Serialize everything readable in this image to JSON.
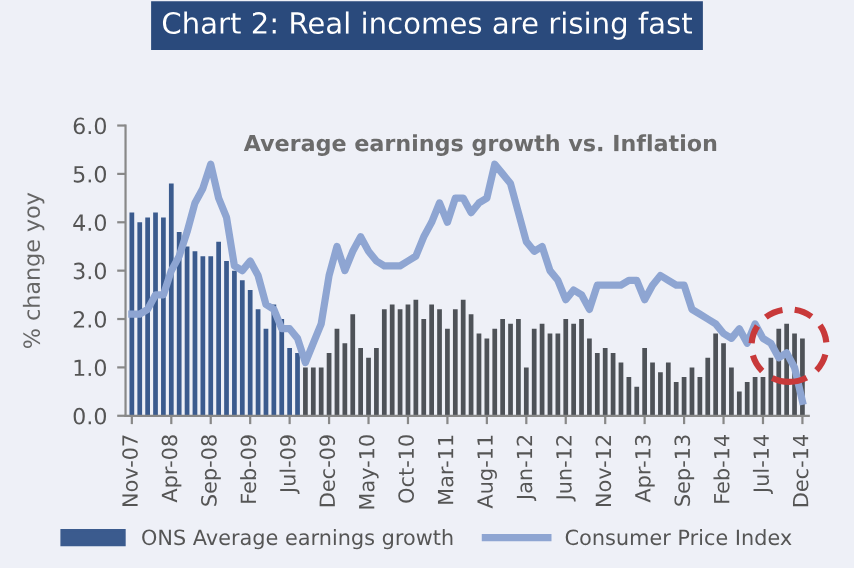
{
  "chart_data": {
    "type": "bar",
    "title": "Chart 2: Real incomes are rising fast",
    "subtitle": "Average earnings growth vs. Inflation",
    "ylabel": "% change yoy",
    "categories": [
      "Nov-07",
      null,
      null,
      null,
      null,
      "Apr-08",
      null,
      null,
      null,
      null,
      "Sep-08",
      null,
      null,
      null,
      null,
      "Feb-09",
      null,
      null,
      null,
      null,
      "Jul-09",
      null,
      null,
      null,
      null,
      "Dec-09",
      null,
      null,
      null,
      null,
      "May-10",
      null,
      null,
      null,
      null,
      "Oct-10",
      null,
      null,
      null,
      null,
      "Mar-11",
      null,
      null,
      null,
      null,
      "Aug-11",
      null,
      null,
      null,
      null,
      "Jan-12",
      null,
      null,
      null,
      null,
      "Jun-12",
      null,
      null,
      null,
      null,
      "Nov-12",
      null,
      null,
      null,
      null,
      "Apr-13",
      null,
      null,
      null,
      null,
      "Sep-13",
      null,
      null,
      null,
      null,
      "Feb-14",
      null,
      null,
      null,
      null,
      "Jul-14",
      null,
      null,
      null,
      null,
      "Dec-14"
    ],
    "series": [
      {
        "name": "ONS Average earnings growth",
        "color": "#3b5b8e",
        "colors": [
          "#3b5b8e",
          "#3b5b8e",
          "#3b5b8e",
          "#3b5b8e",
          "#3b5b8e",
          "#3b5b8e",
          "#3b5b8e",
          "#3b5b8e",
          "#3b5b8e",
          "#3b5b8e",
          "#3b5b8e",
          "#3b5b8e",
          "#3b5b8e",
          "#3b5b8e",
          "#3b5b8e",
          "#3b5b8e",
          "#3b5b8e",
          "#3b5b8e",
          "#3b5b8e",
          "#3b5b8e",
          "#3b5b8e",
          "#3b5b8e",
          "#4e5258",
          "#4e5258",
          "#4e5258",
          "#4e5258",
          "#4e5258",
          "#4e5258",
          "#4e5258",
          "#4e5258",
          "#4e5258",
          "#4e5258",
          "#4e5258",
          "#4e5258",
          "#4e5258",
          "#4e5258",
          "#4e5258",
          "#4e5258",
          "#4e5258",
          "#4e5258",
          "#4e5258",
          "#4e5258",
          "#4e5258",
          "#4e5258",
          "#4e5258",
          "#4e5258",
          "#4e5258",
          "#4e5258",
          "#4e5258",
          "#4e5258",
          "#4e5258",
          "#4e5258",
          "#4e5258",
          "#4e5258",
          "#4e5258",
          "#4e5258",
          "#4e5258",
          "#4e5258",
          "#4e5258",
          "#4e5258",
          "#4e5258",
          "#4e5258",
          "#4e5258",
          "#4e5258",
          "#4e5258",
          "#4e5258",
          "#4e5258",
          "#4e5258",
          "#4e5258",
          "#4e5258",
          "#4e5258",
          "#4e5258",
          "#4e5258",
          "#4e5258",
          "#4e5258",
          "#4e5258",
          "#4e5258",
          "#4e5258",
          "#4e5258",
          "#4e5258",
          "#4e5258",
          "#4e5258",
          "#4e5258",
          "#4e5258",
          "#4e5258",
          "#4e5258"
        ],
        "values": [
          4.2,
          4.0,
          4.1,
          4.2,
          4.1,
          4.8,
          3.8,
          3.5,
          3.4,
          3.3,
          3.3,
          3.6,
          3.2,
          3.0,
          2.8,
          2.6,
          2.2,
          1.8,
          2.3,
          2.0,
          1.4,
          1.3,
          1.0,
          1.0,
          1.0,
          1.3,
          1.8,
          1.5,
          2.1,
          1.4,
          1.2,
          1.4,
          2.2,
          2.3,
          2.2,
          2.3,
          2.4,
          2.0,
          2.3,
          2.2,
          1.8,
          2.2,
          2.4,
          2.1,
          1.7,
          1.6,
          1.8,
          2.0,
          1.9,
          2.0,
          1.0,
          1.8,
          1.9,
          1.7,
          1.7,
          2.0,
          1.9,
          2.0,
          1.6,
          1.3,
          1.4,
          1.3,
          1.1,
          0.8,
          0.6,
          1.4,
          1.1,
          0.9,
          1.1,
          0.7,
          0.8,
          1.0,
          0.8,
          1.2,
          1.7,
          1.5,
          1.0,
          0.5,
          0.7,
          0.8,
          0.8,
          1.2,
          1.8,
          1.9,
          1.7,
          1.6
        ]
      },
      {
        "name": "Consumer Price Index",
        "type": "line",
        "color": "#8ea5d2",
        "values": [
          2.1,
          2.1,
          2.2,
          2.5,
          2.5,
          3.0,
          3.3,
          3.8,
          4.4,
          4.7,
          5.2,
          4.5,
          4.1,
          3.1,
          3.0,
          3.2,
          2.9,
          2.3,
          2.2,
          1.8,
          1.8,
          1.6,
          1.1,
          1.5,
          1.9,
          2.9,
          3.5,
          3.0,
          3.4,
          3.7,
          3.4,
          3.2,
          3.1,
          3.1,
          3.1,
          3.2,
          3.3,
          3.7,
          4.0,
          4.4,
          4.0,
          4.5,
          4.5,
          4.2,
          4.4,
          4.5,
          5.2,
          5.0,
          4.8,
          4.2,
          3.6,
          3.4,
          3.5,
          3.0,
          2.8,
          2.4,
          2.6,
          2.5,
          2.2,
          2.7,
          2.7,
          2.7,
          2.7,
          2.8,
          2.8,
          2.4,
          2.7,
          2.9,
          2.8,
          2.7,
          2.7,
          2.2,
          2.1,
          2.0,
          1.9,
          1.7,
          1.6,
          1.8,
          1.5,
          1.9,
          1.6,
          1.5,
          1.2,
          1.3,
          1.0,
          0.3
        ]
      }
    ],
    "ylim": [
      0,
      6
    ],
    "yticks": [
      {
        "value": 0,
        "label": "0.0"
      },
      {
        "value": 1,
        "label": "1.0"
      },
      {
        "value": 2,
        "label": "2.0"
      },
      {
        "value": 3,
        "label": "3.0"
      },
      {
        "value": 4,
        "label": "4.0"
      },
      {
        "value": 5,
        "label": "5.0"
      },
      {
        "value": 6,
        "label": "6.0"
      }
    ],
    "grid": false,
    "legend": "bottom",
    "marker": "none",
    "line_style": "solid"
  }
}
